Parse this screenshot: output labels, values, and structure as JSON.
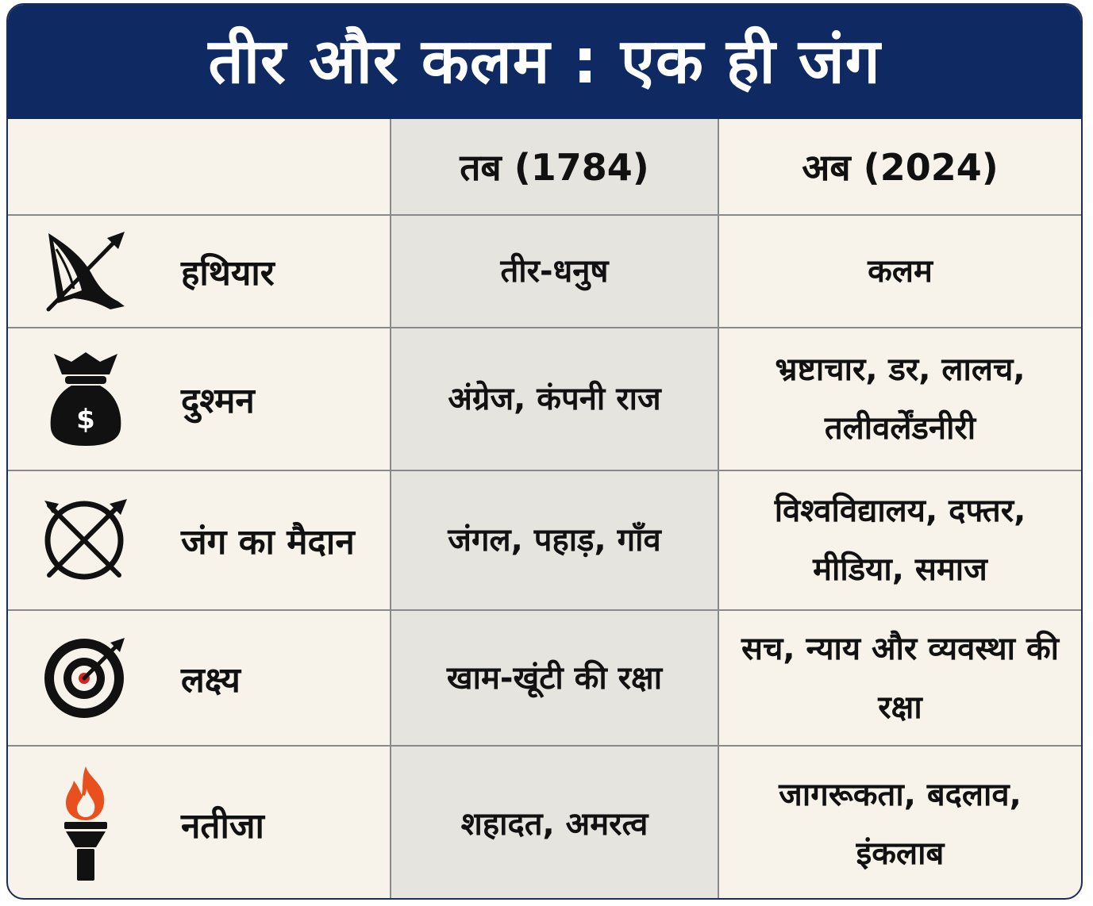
{
  "title": "तीर और कलम : एक ही जंग",
  "columns": {
    "then": "तब (1784)",
    "now": "अब (2024)"
  },
  "rows": [
    {
      "icon": "bow-arrow-icon",
      "label": "हथियार",
      "then": "तीर-धनुष",
      "now": "कलम"
    },
    {
      "icon": "money-bag-icon",
      "label": "दुश्मन",
      "then": "अंग्रेज, कंपनी राज",
      "now": "भ्रष्टाचार, डर, लालच, तलीवर्लेंडनीरी"
    },
    {
      "icon": "crossed-arrows-circle-icon",
      "label": "जंग का मैदान",
      "then": "जंगल, पहाड़, गाँव",
      "now": "विश्वविद्यालय, दफ्तर, मीडिया, समाज"
    },
    {
      "icon": "target-icon",
      "label": "लक्ष्य",
      "then": "खाम-खूंटी की रक्षा",
      "now": "सच, न्याय और व्यवस्था की रक्षा"
    },
    {
      "icon": "torch-icon",
      "label": "नतीजा",
      "then": "शहादत, अमरत्व",
      "now": "जागरूकता, बदलाव, इंकलाब"
    }
  ],
  "colors": {
    "title_bar": "#0f2a63",
    "background": "#f7f3ea",
    "then_column": "#e6e4df",
    "flame": "#e8501e",
    "target_center": "#d6221e"
  }
}
